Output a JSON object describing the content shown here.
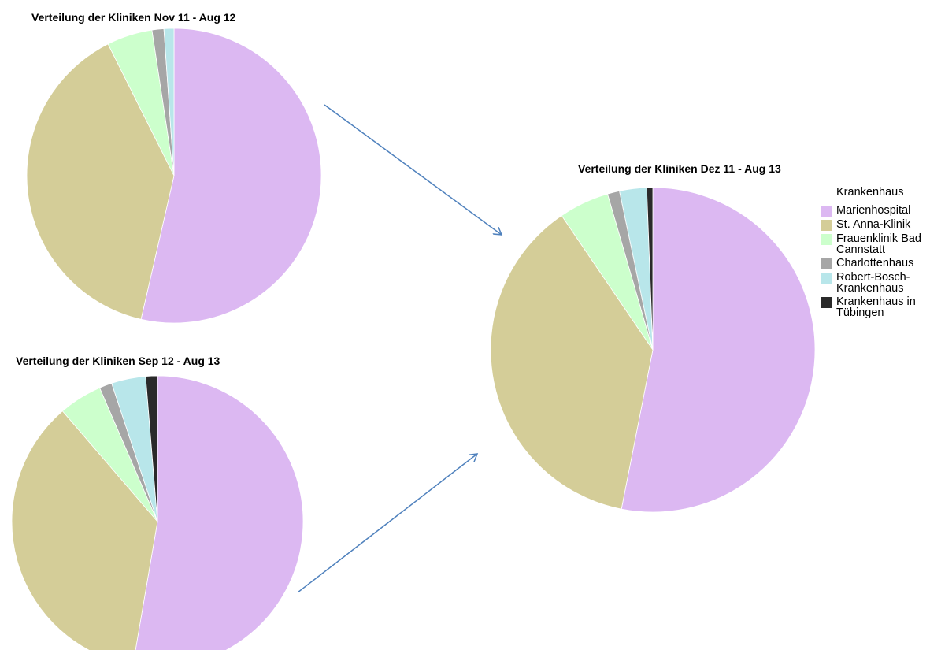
{
  "chart_data": [
    {
      "type": "pie",
      "title": "Verteilung der Kliniken Nov 11 - Aug 12",
      "categories": [
        "Marienhospital",
        "St. Anna-Klinik",
        "Frauenklinik Bad Cannstatt",
        "Charlottenhaus",
        "Robert-Bosch-Krankenhaus",
        "Krankenhaus in Tübingen"
      ],
      "values": [
        53.6,
        39,
        5,
        1.3,
        1.1,
        0
      ],
      "colors": [
        "#dcb8f2",
        "#d4cd98",
        "#ccffcc",
        "#a6a6a6",
        "#b8e6ea",
        "#2a2a2a"
      ]
    },
    {
      "type": "pie",
      "title": "Verteilung der Kliniken Sep 12 - Aug 13",
      "categories": [
        "Marienhospital",
        "St. Anna-Klinik",
        "Frauenklinik Bad Cannstatt",
        "Charlottenhaus",
        "Robert-Bosch-Krankenhaus",
        "Krankenhaus in Tübingen"
      ],
      "values": [
        52.7,
        36,
        4.8,
        1.4,
        3.8,
        1.3
      ],
      "colors": [
        "#dcb8f2",
        "#d4cd98",
        "#ccffcc",
        "#a6a6a6",
        "#b8e6ea",
        "#2a2a2a"
      ]
    },
    {
      "type": "pie",
      "title": "Verteilung der Kliniken Dez 11 - Aug 13",
      "categories": [
        "Marienhospital",
        "St. Anna-Klinik",
        "Frauenklinik Bad Cannstatt",
        "Charlottenhaus",
        "Robert-Bosch-Krankenhaus",
        "Krankenhaus in Tübingen"
      ],
      "values": [
        53.1,
        37.4,
        5,
        1.2,
        2.7,
        0.6
      ],
      "colors": [
        "#dcb8f2",
        "#d4cd98",
        "#ccffcc",
        "#a6a6a6",
        "#b8e6ea",
        "#2a2a2a"
      ],
      "legend_title": "Krankenhaus",
      "legend": "right"
    }
  ]
}
